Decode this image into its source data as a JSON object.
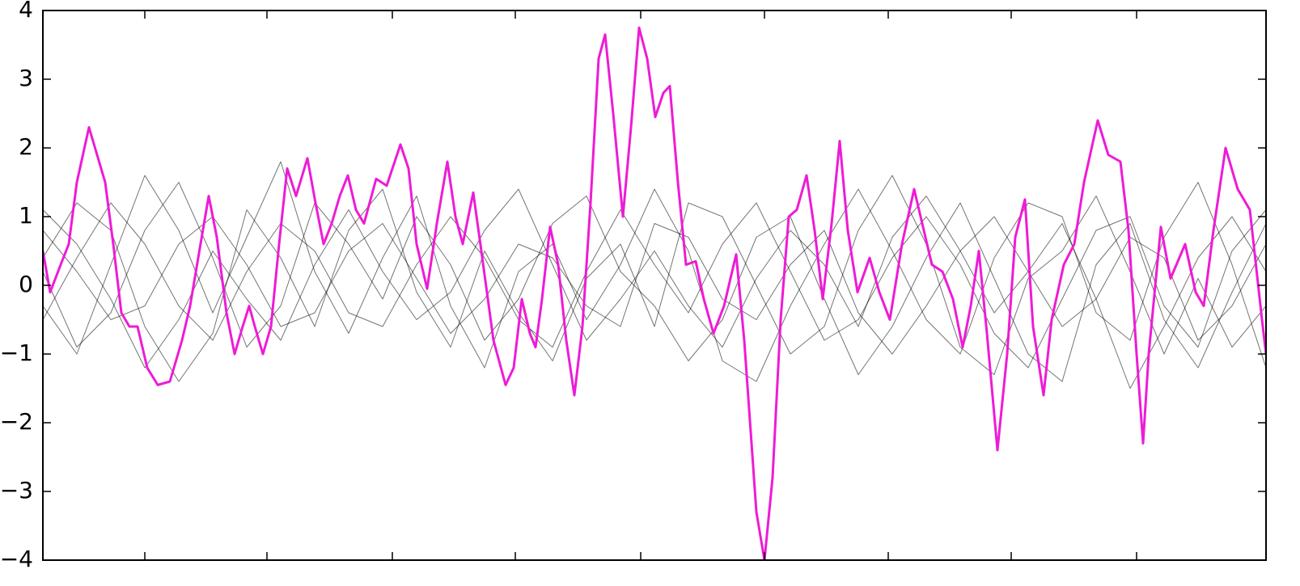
{
  "chart_data": {
    "type": "line",
    "xlim": [
      0,
      1512
    ],
    "xticks": [
      126,
      277,
      432,
      584,
      739,
      892,
      1045,
      1197,
      1352
    ],
    "ylim": [
      -4,
      4
    ],
    "yticks": [
      {
        "value": -4,
        "label": "−4"
      },
      {
        "value": -3,
        "label": "−3"
      },
      {
        "value": -2,
        "label": "−2"
      },
      {
        "value": -1,
        "label": "−1"
      },
      0,
      1,
      2,
      3,
      4
    ],
    "x": [
      0,
      42,
      84,
      126,
      168,
      210,
      252,
      294,
      336,
      378,
      420,
      462,
      504,
      546,
      588,
      630,
      672,
      714,
      756,
      798,
      840,
      882,
      924,
      966,
      1008,
      1050,
      1092,
      1134,
      1176,
      1218,
      1260,
      1302,
      1344,
      1386,
      1428,
      1470,
      1512
    ],
    "series": [
      {
        "color": "#000000",
        "values": [
          0.8,
          0.2,
          -0.5,
          -0.3,
          0.6,
          1.0,
          0.3,
          -0.6,
          -0.4,
          0.5,
          0.9,
          0.1,
          -0.7,
          -0.2,
          0.6,
          0.4,
          -0.3,
          -0.6,
          0.9,
          0.7,
          -0.2,
          -0.5,
          0.3,
          0.8,
          -0.4,
          -1.0,
          -0.3,
          0.5,
          1.0,
          0.2,
          -0.6,
          -0.2,
          0.7,
          0.4,
          -0.8,
          -0.3,
          0.6
        ]
      },
      {
        "color": "#000000",
        "values": [
          -0.5,
          0.4,
          1.2,
          0.6,
          -0.3,
          -0.8,
          0.2,
          0.9,
          0.5,
          -0.4,
          -0.6,
          0.3,
          1.0,
          0.4,
          -0.5,
          -0.9,
          0.2,
          1.1,
          0.3,
          -0.4,
          0.6,
          1.2,
          0.2,
          -0.8,
          -0.5,
          0.4,
          1.0,
          0.3,
          -0.7,
          -1.2,
          -0.2,
          0.8,
          1.0,
          -0.3,
          -0.9,
          0.5,
          1.1
        ]
      },
      {
        "color": "#000000",
        "values": [
          0.2,
          -0.9,
          -0.4,
          0.8,
          1.5,
          0.4,
          -0.9,
          -0.3,
          1.2,
          0.6,
          -0.2,
          1.0,
          0.3,
          -0.8,
          -0.2,
          0.9,
          1.3,
          0.2,
          -0.3,
          -1.1,
          -0.5,
          0.7,
          1.0,
          -0.2,
          -1.3,
          -0.6,
          0.4,
          1.2,
          0.1,
          -1.0,
          -1.4,
          0.3,
          0.9,
          -0.5,
          -1.2,
          -0.1,
          0.9
        ]
      },
      {
        "color": "#000000",
        "values": [
          1.1,
          0.6,
          -0.2,
          -1.2,
          -0.5,
          0.5,
          -0.2,
          -0.8,
          0.3,
          1.1,
          0.2,
          -0.5,
          -0.1,
          0.8,
          1.4,
          0.3,
          -0.8,
          -0.2,
          0.5,
          -0.3,
          -0.9,
          0.1,
          0.8,
          0.3,
          -0.6,
          0.7,
          1.3,
          0.5,
          -0.4,
          0.2,
          0.9,
          -0.2,
          -1.5,
          -0.6,
          0.4,
          1.0,
          0.2
        ]
      },
      {
        "color": "#000000",
        "values": [
          -0.3,
          -1.0,
          0.3,
          1.6,
          0.8,
          -0.4,
          0.7,
          1.8,
          0.2,
          -0.7,
          0.4,
          1.3,
          -0.3,
          -1.2,
          0.2,
          0.6,
          -0.5,
          0.3,
          1.4,
          0.5,
          -1.1,
          -1.4,
          -0.3,
          0.6,
          1.4,
          0.5,
          -0.5,
          -1.0,
          0.4,
          1.2,
          1.0,
          -0.4,
          -0.8,
          0.7,
          1.5,
          0.3,
          -1.2
        ]
      },
      {
        "color": "#000000",
        "values": [
          0.4,
          1.2,
          0.8,
          -0.6,
          -1.4,
          -0.7,
          1.1,
          0.4,
          -0.6,
          0.8,
          1.4,
          -0.1,
          -0.9,
          0.5,
          -0.4,
          -1.1,
          0.1,
          0.6,
          -0.6,
          1.2,
          1.0,
          0.0,
          -1.0,
          -0.6,
          0.8,
          1.6,
          0.6,
          -0.9,
          -1.3,
          0.1,
          0.5,
          1.3,
          0.2,
          -1.0,
          0.1,
          -0.9,
          -0.3
        ]
      },
      {
        "color": "#ee1bd6",
        "x": [
          0,
          9,
          22,
          32,
          42,
          57,
          67,
          77,
          87,
          97,
          107,
          117,
          129,
          142,
          157,
          172,
          182,
          192,
          205,
          215,
          227,
          237,
          247,
          255,
          262,
          272,
          282,
          292,
          302,
          313,
          327,
          337,
          347,
          357,
          367,
          377,
          387,
          397,
          412,
          425,
          442,
          452,
          462,
          475,
          487,
          500,
          510,
          519,
          532,
          542,
          557,
          572,
          582,
          592,
          602,
          609,
          617,
          627,
          637,
          647,
          657,
          667,
          677,
          687,
          695,
          705,
          717,
          727,
          737,
          747,
          757,
          767,
          775,
          785,
          795,
          807,
          817,
          829,
          842,
          857,
          867,
          882,
          892,
          902,
          912,
          922,
          932,
          944,
          954,
          964,
          975,
          985,
          995,
          1007,
          1022,
          1034,
          1047,
          1062,
          1077,
          1087,
          1099,
          1112,
          1125,
          1137,
          1147,
          1157,
          1167,
          1180,
          1192,
          1202,
          1214,
          1224,
          1237,
          1247,
          1262,
          1275,
          1287,
          1304,
          1317,
          1332,
          1342,
          1352,
          1360,
          1367,
          1382,
          1394,
          1412,
          1425,
          1435,
          1447,
          1462,
          1477,
          1492,
          1507,
          1512
        ],
        "values": [
          0.5,
          -0.1,
          0.3,
          0.6,
          1.5,
          2.3,
          1.9,
          1.5,
          0.6,
          -0.4,
          -0.6,
          -0.6,
          -1.2,
          -1.45,
          -1.4,
          -0.8,
          -0.3,
          0.4,
          1.3,
          0.7,
          -0.4,
          -1.0,
          -0.6,
          -0.3,
          -0.6,
          -1.0,
          -0.6,
          0.6,
          1.7,
          1.3,
          1.85,
          1.2,
          0.6,
          0.9,
          1.3,
          1.6,
          1.1,
          0.9,
          1.55,
          1.45,
          2.05,
          1.7,
          0.6,
          -0.05,
          0.9,
          1.8,
          1.0,
          0.6,
          1.35,
          0.5,
          -0.8,
          -1.45,
          -1.2,
          -0.2,
          -0.7,
          -0.9,
          -0.2,
          0.85,
          0.3,
          -0.8,
          -1.6,
          -0.6,
          1.2,
          3.3,
          3.65,
          2.5,
          1.0,
          2.3,
          3.75,
          3.3,
          2.45,
          2.8,
          2.9,
          1.5,
          0.3,
          0.35,
          -0.2,
          -0.7,
          -0.3,
          0.45,
          -0.8,
          -3.3,
          -4.0,
          -2.8,
          -0.5,
          1.0,
          1.1,
          1.6,
          0.8,
          -0.2,
          0.9,
          2.1,
          0.8,
          -0.1,
          0.4,
          -0.1,
          -0.5,
          0.6,
          1.4,
          0.9,
          0.3,
          0.2,
          -0.2,
          -0.9,
          -0.3,
          0.5,
          -0.7,
          -2.4,
          -1.0,
          0.7,
          1.25,
          -0.6,
          -1.6,
          -0.5,
          0.3,
          0.6,
          1.5,
          2.4,
          1.9,
          1.8,
          0.8,
          -1.0,
          -2.3,
          -1.0,
          0.85,
          0.1,
          0.6,
          -0.1,
          -0.3,
          0.8,
          2.0,
          1.4,
          1.1,
          -0.5,
          -1.0
        ]
      }
    ]
  }
}
